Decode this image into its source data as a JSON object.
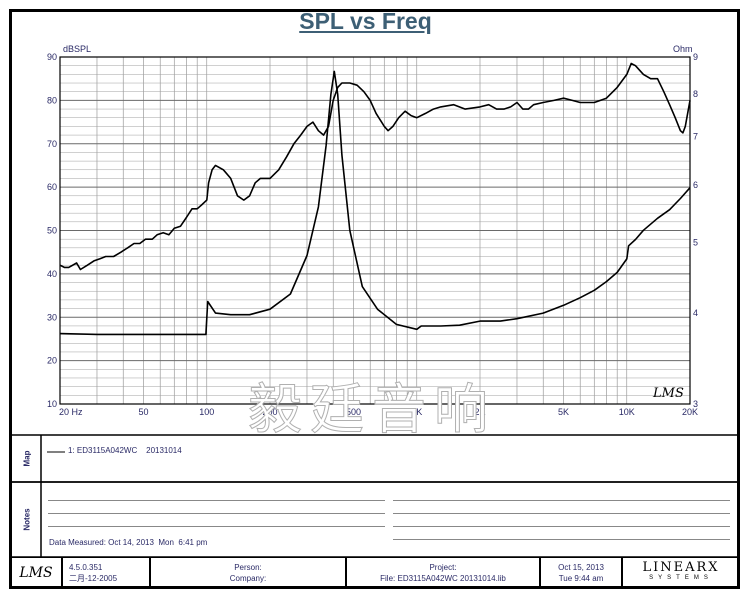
{
  "chart_data": {
    "type": "line",
    "title": "SPL vs Freq",
    "x_scale": "log",
    "xlim": [
      20,
      20000
    ],
    "x_ticks": [
      20,
      50,
      100,
      200,
      500,
      1000,
      2000,
      5000,
      10000,
      20000
    ],
    "x_tick_labels": [
      "20 Hz",
      "50",
      "100",
      "200",
      "500",
      "1K",
      "2K",
      "5K",
      "10K",
      "20K"
    ],
    "y_left": {
      "unit": "dBSPL",
      "range": [
        10,
        90
      ],
      "ticks": [
        10,
        20,
        30,
        40,
        50,
        60,
        70,
        80,
        90
      ]
    },
    "y_right": {
      "unit": "Ohm",
      "scale": "log",
      "range": [
        3,
        9
      ],
      "ticks": [
        3,
        4,
        5,
        6,
        7,
        8,
        9
      ]
    },
    "grid": true,
    "series": [
      {
        "role": "SPL",
        "axis": "left",
        "points": [
          [
            20,
            42
          ],
          [
            21,
            41.5
          ],
          [
            22,
            41.5
          ],
          [
            24,
            42.5
          ],
          [
            25,
            41
          ],
          [
            27,
            42
          ],
          [
            29,
            43
          ],
          [
            31,
            43.5
          ],
          [
            33,
            44
          ],
          [
            36,
            44
          ],
          [
            39,
            45
          ],
          [
            42,
            46
          ],
          [
            45,
            47
          ],
          [
            48,
            47
          ],
          [
            51,
            48
          ],
          [
            55,
            48
          ],
          [
            58,
            49
          ],
          [
            62,
            49.5
          ],
          [
            66,
            49
          ],
          [
            70,
            50.5
          ],
          [
            75,
            51
          ],
          [
            80,
            53
          ],
          [
            85,
            55
          ],
          [
            90,
            55
          ],
          [
            95,
            56
          ],
          [
            100,
            57
          ],
          [
            102,
            61
          ],
          [
            106,
            64
          ],
          [
            110,
            65
          ],
          [
            120,
            64
          ],
          [
            130,
            62
          ],
          [
            140,
            58
          ],
          [
            150,
            57
          ],
          [
            160,
            58
          ],
          [
            170,
            61
          ],
          [
            180,
            62
          ],
          [
            200,
            62
          ],
          [
            220,
            64
          ],
          [
            240,
            67
          ],
          [
            260,
            70
          ],
          [
            280,
            72
          ],
          [
            300,
            74
          ],
          [
            320,
            75
          ],
          [
            340,
            73
          ],
          [
            360,
            72
          ],
          [
            380,
            74
          ],
          [
            400,
            80
          ],
          [
            420,
            83
          ],
          [
            440,
            84
          ],
          [
            480,
            84
          ],
          [
            520,
            83.5
          ],
          [
            560,
            82
          ],
          [
            600,
            80
          ],
          [
            640,
            77
          ],
          [
            700,
            74
          ],
          [
            730,
            73
          ],
          [
            770,
            74
          ],
          [
            820,
            76
          ],
          [
            880,
            77.5
          ],
          [
            940,
            76.5
          ],
          [
            1000,
            76
          ],
          [
            1100,
            77
          ],
          [
            1200,
            78
          ],
          [
            1300,
            78.5
          ],
          [
            1500,
            79
          ],
          [
            1700,
            78
          ],
          [
            2000,
            78.5
          ],
          [
            2200,
            79
          ],
          [
            2400,
            78
          ],
          [
            2600,
            78
          ],
          [
            2800,
            78.5
          ],
          [
            3000,
            79.5
          ],
          [
            3200,
            78
          ],
          [
            3400,
            78
          ],
          [
            3600,
            79
          ],
          [
            4000,
            79.5
          ],
          [
            4500,
            80
          ],
          [
            5000,
            80.5
          ],
          [
            5500,
            80
          ],
          [
            6000,
            79.5
          ],
          [
            7000,
            79.5
          ],
          [
            8000,
            80.5
          ],
          [
            9000,
            83
          ],
          [
            10000,
            86
          ],
          [
            10500,
            88.5
          ],
          [
            11000,
            88
          ],
          [
            12000,
            86
          ],
          [
            13000,
            85
          ],
          [
            14000,
            85
          ],
          [
            15000,
            82
          ],
          [
            16000,
            79
          ],
          [
            17000,
            76
          ],
          [
            18000,
            73
          ],
          [
            18500,
            72.5
          ],
          [
            19000,
            74
          ],
          [
            20000,
            80
          ]
        ]
      },
      {
        "role": "Impedance",
        "axis": "right",
        "points": [
          [
            20,
            3.75
          ],
          [
            30,
            3.74
          ],
          [
            50,
            3.74
          ],
          [
            70,
            3.74
          ],
          [
            99,
            3.74
          ],
          [
            101,
            4.15
          ],
          [
            110,
            4.0
          ],
          [
            130,
            3.98
          ],
          [
            160,
            3.98
          ],
          [
            200,
            4.05
          ],
          [
            250,
            4.25
          ],
          [
            300,
            4.8
          ],
          [
            340,
            5.6
          ],
          [
            370,
            6.8
          ],
          [
            390,
            8.0
          ],
          [
            405,
            8.6
          ],
          [
            420,
            8.0
          ],
          [
            440,
            6.6
          ],
          [
            480,
            5.2
          ],
          [
            550,
            4.35
          ],
          [
            650,
            4.05
          ],
          [
            800,
            3.86
          ],
          [
            1000,
            3.8
          ],
          [
            1050,
            3.84
          ],
          [
            1300,
            3.84
          ],
          [
            1600,
            3.85
          ],
          [
            2000,
            3.9
          ],
          [
            2500,
            3.9
          ],
          [
            3000,
            3.93
          ],
          [
            4000,
            4.0
          ],
          [
            5000,
            4.1
          ],
          [
            6000,
            4.2
          ],
          [
            7000,
            4.3
          ],
          [
            8000,
            4.42
          ],
          [
            9000,
            4.55
          ],
          [
            10000,
            4.75
          ],
          [
            10200,
            4.95
          ],
          [
            11000,
            5.05
          ],
          [
            12000,
            5.2
          ],
          [
            14000,
            5.4
          ],
          [
            16000,
            5.55
          ],
          [
            18000,
            5.75
          ],
          [
            20000,
            5.95
          ]
        ]
      }
    ]
  },
  "logo_mark": "LMS",
  "watermark_text": "毅廷音响",
  "map": {
    "label": "Map",
    "legend_entry": "1: ED3115A042WC    20131014"
  },
  "notes": {
    "label": "Notes",
    "measured": "Data Measured: Oct 14, 2013  Mon  6:41 pm"
  },
  "footer": {
    "logo": "LMS",
    "version": "4.5.0.351",
    "version_date": "二月-12-2005",
    "person_label": "Person:",
    "company_label": "Company:",
    "project_label": "Project:",
    "file_label": "File: ED3115A042WC 20131014.lib",
    "date": "Oct 15, 2013",
    "time": "Tue  9:44 am",
    "brand_top": "LINEARX",
    "brand_bottom": "SYSTEMS"
  },
  "colors": {
    "title": "#3d5f75",
    "axis_text": "#2a2a66",
    "grid": "#888888",
    "trace": "#000000"
  }
}
